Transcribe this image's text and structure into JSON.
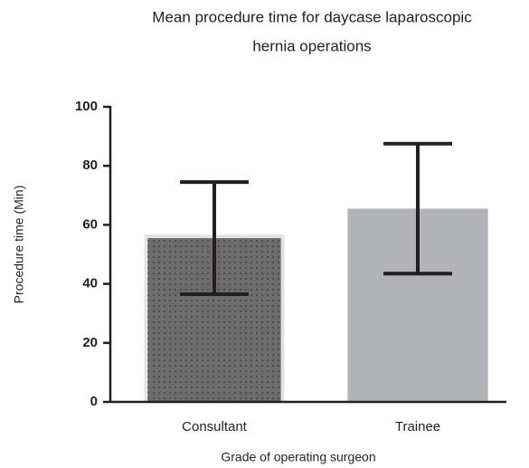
{
  "chart_data": {
    "type": "bar",
    "title": [
      "Mean procedure time for daycase laparoscopic",
      "hernia operations"
    ],
    "xlabel": "Grade of operating surgeon",
    "ylabel": "Procedure time (Min)",
    "categories": [
      "Consultant",
      "Trainee"
    ],
    "values": [
      55.5,
      65.5
    ],
    "errors": [
      19,
      22
    ],
    "colors": [
      "#6d6d6d",
      "#b1b3b6"
    ],
    "patterns": [
      "dots",
      null
    ],
    "ylim": [
      0,
      100
    ],
    "yticks": [
      0,
      20,
      40,
      60,
      80,
      100
    ],
    "grid": false
  }
}
